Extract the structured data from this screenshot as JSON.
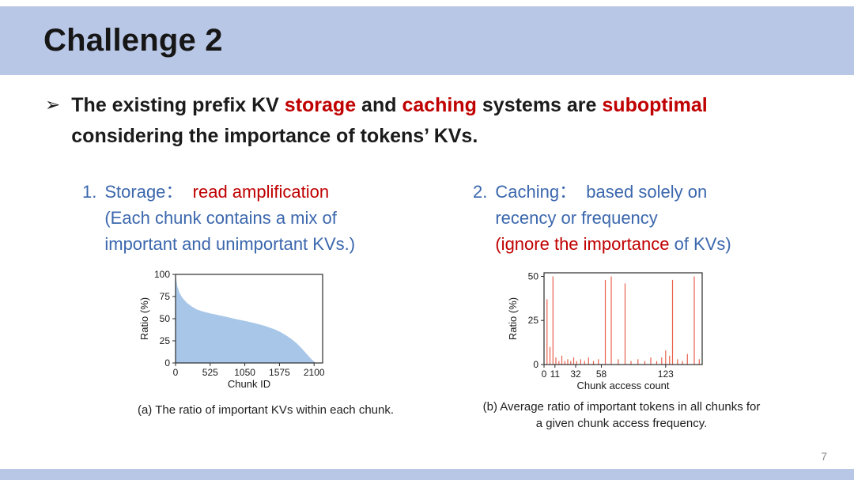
{
  "slide": {
    "title": "Challenge 2",
    "page_number": "7",
    "band_color": "#b9c7e6",
    "red": "#c00000",
    "blue": "#3b67ad"
  },
  "bullet": {
    "marker": "➢",
    "segments": [
      {
        "text": "The existing prefix KV ",
        "style": "normal"
      },
      {
        "text": "storage",
        "style": "red"
      },
      {
        "text": " and ",
        "style": "normal"
      },
      {
        "text": "caching",
        "style": "red"
      },
      {
        "text": " systems are ",
        "style": "normal"
      },
      {
        "text": "suboptimal",
        "style": "red"
      },
      {
        "text": "\nconsidering the importance of tokens’ KVs.",
        "style": "normal"
      }
    ]
  },
  "items": [
    {
      "number": "1.",
      "segments": [
        {
          "text": "Storage：  ",
          "style": "blue"
        },
        {
          "text": "read amplification",
          "style": "red"
        },
        {
          "text": "\n(Each chunk contains a mix of\nimportant and unimportant KVs.)",
          "style": "blue"
        }
      ],
      "caption": "(a) The ratio of important KVs within each chunk."
    },
    {
      "number": "2.",
      "segments": [
        {
          "text": "Caching：  based solely on\nrecency or frequency\n",
          "style": "blue"
        },
        {
          "text": "(ignore the importance",
          "style": "red"
        },
        {
          "text": " of KVs)",
          "style": "blue"
        }
      ],
      "caption": "(b) Average ratio of important tokens in all chunks for a given chunk access frequency."
    }
  ],
  "chart_data": [
    {
      "type": "area",
      "title": "",
      "xlabel": "Chunk ID",
      "ylabel": "Ratio (%)",
      "xlim": [
        0,
        2230
      ],
      "ylim": [
        0,
        100
      ],
      "xticks": [
        0,
        525,
        1050,
        1575,
        2100
      ],
      "yticks": [
        0,
        25,
        50,
        75,
        100
      ],
      "x": [
        0,
        25,
        60,
        110,
        170,
        240,
        320,
        420,
        525,
        650,
        800,
        950,
        1050,
        1200,
        1350,
        1500,
        1575,
        1660,
        1750,
        1840,
        1920,
        1990,
        2050,
        2100,
        2130
      ],
      "y": [
        100,
        87,
        79,
        73,
        68,
        64,
        60.5,
        58,
        56,
        54,
        51.5,
        49,
        47.5,
        45,
        42,
        38,
        35.5,
        32,
        27.5,
        22,
        16,
        10,
        5,
        1.5,
        0
      ],
      "fill_color": "#a8c7e8",
      "grid": false,
      "legend": false
    },
    {
      "type": "bar",
      "title": "",
      "xlabel": "Chunk access count",
      "ylabel": "Ratio (%)",
      "xlim": [
        0,
        160
      ],
      "ylim": [
        0,
        52
      ],
      "xticks": [
        0,
        11,
        32,
        58,
        123
      ],
      "yticks": [
        0,
        25,
        50
      ],
      "spikes": [
        [
          3,
          37
        ],
        [
          6,
          10
        ],
        [
          9,
          50
        ],
        [
          12,
          4
        ],
        [
          15,
          2
        ],
        [
          18,
          5
        ],
        [
          21,
          2
        ],
        [
          24,
          3
        ],
        [
          27,
          2
        ],
        [
          30,
          4
        ],
        [
          33,
          2
        ],
        [
          37,
          3
        ],
        [
          41,
          2
        ],
        [
          45,
          4
        ],
        [
          50,
          2
        ],
        [
          55,
          3
        ],
        [
          62,
          48
        ],
        [
          68,
          50
        ],
        [
          75,
          3
        ],
        [
          82,
          46
        ],
        [
          88,
          2
        ],
        [
          95,
          3
        ],
        [
          102,
          2
        ],
        [
          108,
          4
        ],
        [
          114,
          2
        ],
        [
          119,
          4
        ],
        [
          123,
          8
        ],
        [
          127,
          5
        ],
        [
          130,
          48
        ],
        [
          135,
          3
        ],
        [
          140,
          2
        ],
        [
          145,
          6
        ],
        [
          152,
          50
        ],
        [
          157,
          3
        ]
      ],
      "bar_color": "#e8604c",
      "grid": false,
      "legend": false
    }
  ]
}
